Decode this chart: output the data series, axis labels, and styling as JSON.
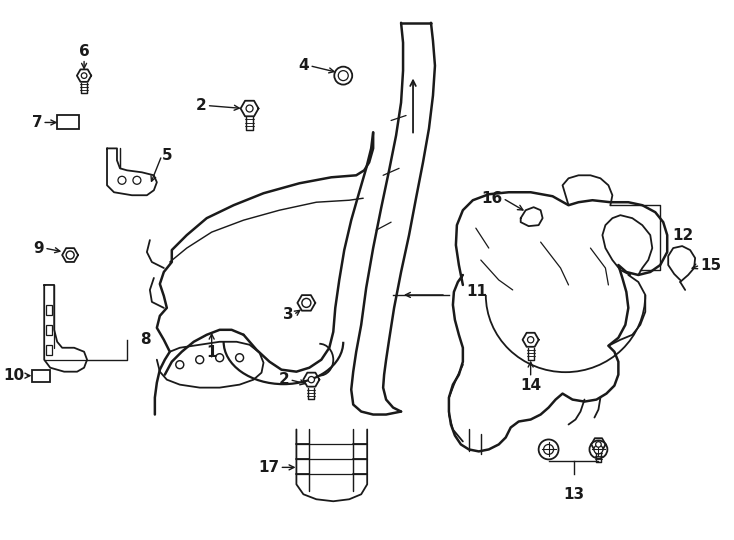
{
  "bg_color": "#ffffff",
  "line_color": "#1a1a1a",
  "lw": 1.3,
  "fig_w": 7.34,
  "fig_h": 5.4,
  "dpi": 100
}
